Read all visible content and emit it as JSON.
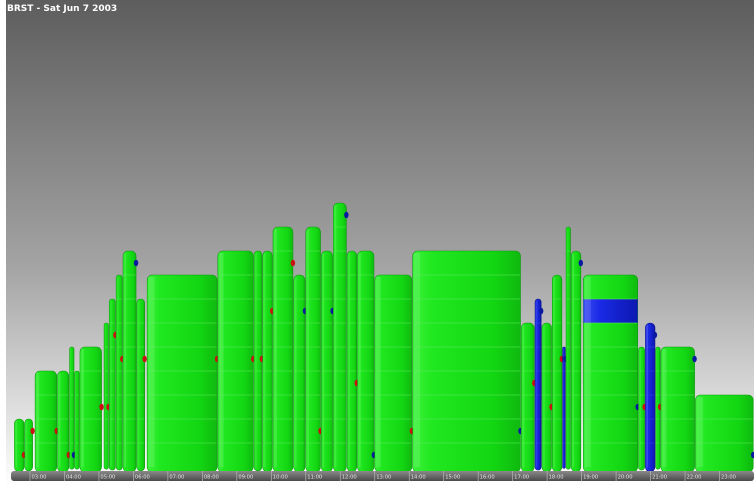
{
  "title": "BRST - Sat Jun 7 2003",
  "chart_data": {
    "type": "bar",
    "title": "BRST - Sat Jun 7 2003",
    "x_unit": "hour of day",
    "x_range": [
      2.45,
      24.0
    ],
    "y_range": [
      0,
      11
    ],
    "grid": false,
    "colors": {
      "primary": "#18e018",
      "secondary": "#1a2ae0",
      "dot_red": "#cc1111",
      "dot_blue": "#0a1aa0",
      "background_top": "#5f5f5f",
      "background_bottom": "#ffffff"
    },
    "tick_labels": [
      "03:00",
      "04:00",
      "05:00",
      "06:00",
      "07:00",
      "08:00",
      "09:00",
      "10:00",
      "11:00",
      "12:00",
      "13:00",
      "14:00",
      "15:00",
      "16:00",
      "17:00",
      "18:00",
      "19:00",
      "20:00",
      "21:00",
      "22:00",
      "23:00"
    ],
    "ticks": [
      3,
      4,
      5,
      6,
      7,
      8,
      9,
      10,
      11,
      12,
      13,
      14,
      15,
      16,
      17,
      18,
      19,
      20,
      21,
      22,
      23
    ],
    "bars": [
      {
        "x0": 2.55,
        "x1": 2.85,
        "y": 2,
        "dot": "red",
        "dot_y": 0.5
      },
      {
        "x0": 2.85,
        "x1": 3.1,
        "y": 2,
        "dot": "red",
        "dot_y": 1.5
      },
      {
        "x0": 3.15,
        "x1": 3.8,
        "y": 4,
        "dot": "red",
        "dot_y": 1.5
      },
      {
        "x0": 3.8,
        "x1": 4.15,
        "y": 4,
        "dot": "red",
        "dot_y": 0.5
      },
      {
        "x0": 4.15,
        "x1": 4.3,
        "y": 5,
        "dot": "blue",
        "dot_y": 0.5
      },
      {
        "x0": 4.3,
        "x1": 4.45,
        "y": 4
      },
      {
        "x0": 4.45,
        "x1": 5.1,
        "y": 5,
        "dot": "red",
        "dot_y": 2.5
      },
      {
        "x0": 5.15,
        "x1": 5.3,
        "y": 6,
        "dot": "red",
        "dot_y": 2.5
      },
      {
        "x0": 5.3,
        "x1": 5.5,
        "y": 7,
        "dot": "red",
        "dot_y": 5.5
      },
      {
        "x0": 5.5,
        "x1": 5.7,
        "y": 8,
        "dot": "red",
        "dot_y": 4.5
      },
      {
        "x0": 5.7,
        "x1": 6.1,
        "y": 9,
        "dot": "blue",
        "dot_y": 8.5
      },
      {
        "x0": 6.1,
        "x1": 6.35,
        "y": 7,
        "dot": "red",
        "dot_y": 4.5
      },
      {
        "x0": 6.4,
        "x1": 8.45,
        "y": 8,
        "dot": "red",
        "dot_y": 4.5
      },
      {
        "x0": 8.45,
        "x1": 9.5,
        "y": 9,
        "dot": "red",
        "dot_y": 4.5
      },
      {
        "x0": 9.5,
        "x1": 9.75,
        "y": 9,
        "dot": "red",
        "dot_y": 4.5
      },
      {
        "x0": 9.75,
        "x1": 10.05,
        "y": 9,
        "dot": "red",
        "dot_y": 6.5
      },
      {
        "x0": 10.05,
        "x1": 10.65,
        "y": 10,
        "dot": "red",
        "dot_y": 8.5
      },
      {
        "x0": 10.65,
        "x1": 11.0,
        "y": 8,
        "dot": "blue",
        "dot_y": 6.5
      },
      {
        "x0": 11.0,
        "x1": 11.45,
        "y": 10,
        "dot": "red",
        "dot_y": 1.5
      },
      {
        "x0": 11.45,
        "x1": 11.8,
        "y": 9,
        "dot": "blue",
        "dot_y": 6.5
      },
      {
        "x0": 11.8,
        "x1": 12.2,
        "y": 11,
        "dot": "blue",
        "dot_y": 10.5
      },
      {
        "x0": 12.2,
        "x1": 12.5,
        "y": 9,
        "dot": "red",
        "dot_y": 3.5
      },
      {
        "x0": 12.5,
        "x1": 13.0,
        "y": 9,
        "dot": "blue",
        "dot_y": 0.5
      },
      {
        "x0": 13.0,
        "x1": 14.1,
        "y": 8,
        "dot": "red",
        "dot_y": 1.5
      },
      {
        "x0": 14.1,
        "x1": 17.25,
        "y": 9,
        "dot": "blue",
        "dot_y": 1.5
      },
      {
        "x0": 17.25,
        "x1": 17.65,
        "y": 6,
        "dot": "red",
        "dot_y": 3.5
      },
      {
        "x0": 17.65,
        "x1": 17.85,
        "y": 7,
        "color": "blue",
        "dot": "blue",
        "dot_y": 6.5
      },
      {
        "x0": 17.85,
        "x1": 18.15,
        "y": 6,
        "dot": "red",
        "dot_y": 2.5
      },
      {
        "x0": 18.15,
        "x1": 18.45,
        "y": 8,
        "dot": "red",
        "dot_y": 4.5
      },
      {
        "x0": 18.45,
        "x1": 18.55,
        "y": 5,
        "color": "blue",
        "dot": "blue",
        "dot_y": 4.5
      },
      {
        "x0": 18.55,
        "x1": 18.7,
        "y": 10
      },
      {
        "x0": 18.7,
        "x1": 19.0,
        "y": 9,
        "dot": "blue",
        "dot_y": 8.5
      },
      {
        "x0": 19.05,
        "x1": 20.65,
        "y": 8,
        "band": [
          6,
          7
        ],
        "dot": "blue",
        "dot_y": 2.5
      },
      {
        "x0": 20.65,
        "x1": 20.85,
        "y": 5,
        "dot": "red",
        "dot_y": 2.5
      },
      {
        "x0": 20.85,
        "x1": 21.15,
        "y": 6,
        "color": "blue",
        "dot": "blue",
        "dot_y": 5.5
      },
      {
        "x0": 21.15,
        "x1": 21.3,
        "y": 5,
        "dot": "red",
        "dot_y": 2.5
      },
      {
        "x0": 21.3,
        "x1": 22.3,
        "y": 5,
        "dot": "blue",
        "dot_y": 4.5
      },
      {
        "x0": 22.3,
        "x1": 24.0,
        "y": 3,
        "dot": "blue",
        "dot_y": 0.5
      }
    ]
  }
}
